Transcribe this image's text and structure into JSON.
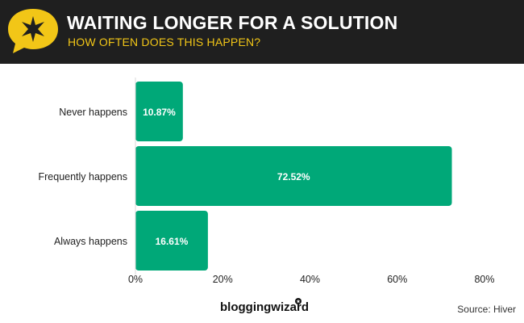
{
  "header": {
    "title": "WAITING LONGER FOR A SOLUTION",
    "subtitle": "HOW OFTEN DOES THIS HAPPEN?",
    "icon": "star-speech-bubble-icon",
    "icon_color": "#f2c617",
    "background_color": "#1f1f1f",
    "subtitle_color": "#f2c617"
  },
  "chart_data": {
    "type": "bar",
    "orientation": "horizontal",
    "categories": [
      "Never happens",
      "Frequently happens",
      "Always happens"
    ],
    "values": [
      10.87,
      72.52,
      16.61
    ],
    "value_labels": [
      "10.87%",
      "72.52%",
      "16.61%"
    ],
    "xlim": [
      0,
      80
    ],
    "xticks": [
      "0%",
      "20%",
      "40%",
      "60%",
      "80%"
    ],
    "bar_color": "#00a878",
    "grid": false,
    "legend": "none"
  },
  "footer": {
    "logo": "bloggingwizard",
    "source": "Source: Hiver"
  }
}
